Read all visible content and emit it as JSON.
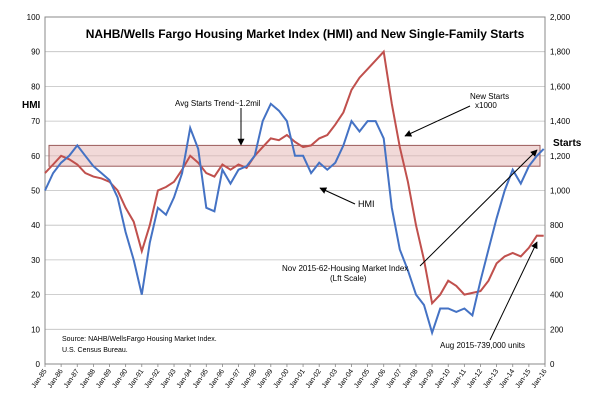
{
  "chart_data": {
    "type": "line",
    "title": "NAHB/Wells Fargo Housing Market Index (HMI) and New Single-Family Starts",
    "left_axis_label": "HMI",
    "right_axis_label": "Starts",
    "left_ylim": [
      0,
      100
    ],
    "left_ticks": [
      "0",
      "10",
      "20",
      "30",
      "40",
      "50",
      "60",
      "70",
      "80",
      "90",
      "100"
    ],
    "right_ylim": [
      0,
      2000
    ],
    "right_ticks": [
      "0",
      "200",
      "400",
      "600",
      "800",
      "1,000",
      "1,200",
      "1,400",
      "1,600",
      "1,800",
      "2,000"
    ],
    "x_ticks": [
      "Jan-85",
      "Jan-86",
      "Jan-87",
      "Jan-88",
      "Jan-89",
      "Jan-90",
      "Jan-91",
      "Jan-92",
      "Jan-93",
      "Jan-94",
      "Jan-95",
      "Jan-96",
      "Jan-97",
      "Jan-98",
      "Jan-99",
      "Jan-00",
      "Jan-01",
      "Jan-02",
      "Jan-03",
      "Jan-04",
      "Jan-05",
      "Jan-06",
      "Jan-07",
      "Jan-08",
      "Jan-09",
      "Jan-10",
      "Jan-11",
      "Jan-12",
      "Jan-13",
      "Jan-14",
      "Jan-15",
      "Jan-16"
    ],
    "x_range": [
      1985.0,
      2016.0
    ],
    "band": {
      "low_hmi": 57,
      "high_hmi": 63
    },
    "hmi_series": {
      "name": "HMI",
      "color": "#4472C4",
      "x": [
        1985.0,
        1985.5,
        1986.0,
        1986.5,
        1987.0,
        1987.5,
        1988.0,
        1988.5,
        1989.0,
        1989.5,
        1990.0,
        1990.5,
        1991.0,
        1991.5,
        1992.0,
        1992.5,
        1993.0,
        1993.5,
        1994.0,
        1994.5,
        1995.0,
        1995.5,
        1996.0,
        1996.5,
        1997.0,
        1997.5,
        1998.0,
        1998.5,
        1999.0,
        1999.5,
        2000.0,
        2000.5,
        2001.0,
        2001.5,
        2002.0,
        2002.5,
        2003.0,
        2003.5,
        2004.0,
        2004.5,
        2005.0,
        2005.5,
        2006.0,
        2006.5,
        2007.0,
        2007.5,
        2008.0,
        2008.5,
        2009.0,
        2009.5,
        2010.0,
        2010.5,
        2011.0,
        2011.5,
        2012.0,
        2012.5,
        2013.0,
        2013.5,
        2014.0,
        2014.5,
        2015.0,
        2015.5,
        2015.92
      ],
      "values": [
        50,
        55,
        58,
        60,
        63,
        60,
        57,
        55,
        53,
        48,
        38,
        30,
        20,
        35,
        45,
        43,
        48,
        55,
        68,
        62,
        45,
        44,
        56,
        52,
        56,
        57,
        60,
        70,
        75,
        73,
        70,
        60,
        60,
        55,
        58,
        56,
        58,
        63,
        70,
        67,
        70,
        70,
        65,
        45,
        33,
        27,
        20,
        17,
        9,
        16,
        16,
        15,
        16,
        14,
        24,
        33,
        42,
        50,
        56,
        52,
        57,
        60,
        62
      ]
    },
    "starts_series": {
      "name": "New Starts x1000",
      "color": "#C0504D",
      "x": [
        1985.0,
        1985.5,
        1986.0,
        1986.5,
        1987.0,
        1987.5,
        1988.0,
        1988.5,
        1989.0,
        1989.5,
        1990.0,
        1990.5,
        1991.0,
        1991.5,
        1992.0,
        1992.5,
        1993.0,
        1993.5,
        1994.0,
        1994.5,
        1995.0,
        1995.5,
        1996.0,
        1996.5,
        1997.0,
        1997.5,
        1998.0,
        1998.5,
        1999.0,
        1999.5,
        2000.0,
        2000.5,
        2001.0,
        2001.5,
        2002.0,
        2002.5,
        2003.0,
        2003.5,
        2004.0,
        2004.5,
        2005.0,
        2005.5,
        2006.0,
        2006.5,
        2007.0,
        2007.5,
        2008.0,
        2008.5,
        2009.0,
        2009.5,
        2010.0,
        2010.5,
        2011.0,
        2011.5,
        2012.0,
        2012.5,
        2013.0,
        2013.5,
        2014.0,
        2014.5,
        2015.0,
        2015.5,
        2015.92
      ],
      "values": [
        1100,
        1150,
        1200,
        1180,
        1150,
        1100,
        1080,
        1070,
        1050,
        1000,
        900,
        820,
        650,
        800,
        1000,
        1020,
        1050,
        1120,
        1200,
        1160,
        1100,
        1080,
        1150,
        1120,
        1150,
        1130,
        1200,
        1250,
        1300,
        1290,
        1320,
        1280,
        1250,
        1260,
        1300,
        1320,
        1380,
        1450,
        1580,
        1650,
        1700,
        1750,
        1800,
        1500,
        1250,
        1050,
        800,
        600,
        350,
        400,
        480,
        450,
        400,
        410,
        420,
        480,
        580,
        620,
        640,
        620,
        670,
        740,
        739
      ]
    }
  },
  "annotations": {
    "avg_trend": "Avg Starts Trend~1.2mil",
    "hmi_label": "HMI",
    "new_starts_line1": "New Starts",
    "new_starts_line2": "x1000",
    "nov_line1": "Nov 2015-62-Housing Market Index",
    "nov_line2": "(Lft Scale)",
    "aug": "Aug 2015-739,000  units",
    "source_line1": "Source: NAHB/WellsFargo Housing Market Index.",
    "source_line2": "U.S. Census Bureau."
  }
}
